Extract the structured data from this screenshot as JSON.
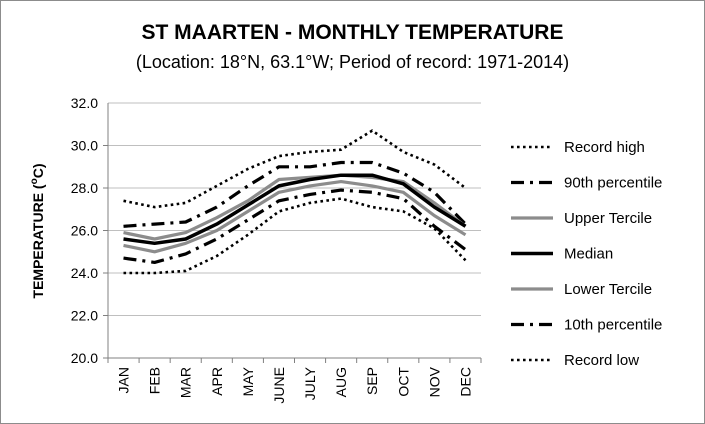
{
  "chart_data": {
    "type": "line",
    "title": "ST MAARTEN - MONTHLY TEMPERATURE",
    "subtitle": "(Location: 18°N, 63.1°W; Period of record: 1971-2014)",
    "ylabel_main": "TEMPERATURE (",
    "ylabel_sup": "o",
    "ylabel_end": "C)",
    "xlabel": "",
    "categories": [
      "JAN",
      "FEB",
      "MAR",
      "APR",
      "MAY",
      "JUNE",
      "JULY",
      "AUG",
      "SEP",
      "OCT",
      "NOV",
      "DEC"
    ],
    "ylim": [
      20.0,
      32.0
    ],
    "yticks": [
      "20.0",
      "22.0",
      "24.0",
      "26.0",
      "28.0",
      "30.0",
      "32.0"
    ],
    "grid": true,
    "legend_position": "right",
    "series": [
      {
        "name": "Record high",
        "color": "#000000",
        "style": "dotted",
        "values": [
          27.4,
          27.1,
          27.3,
          28.1,
          28.9,
          29.5,
          29.7,
          29.8,
          30.7,
          29.7,
          29.1,
          28.0
        ]
      },
      {
        "name": "90th percentile",
        "color": "#000000",
        "style": "dashdot",
        "values": [
          26.2,
          26.3,
          26.4,
          27.1,
          28.1,
          29.0,
          29.0,
          29.2,
          29.2,
          28.7,
          27.8,
          26.3
        ]
      },
      {
        "name": "Upper Tercile",
        "color": "#8c8c8c",
        "style": "solid",
        "values": [
          25.9,
          25.6,
          25.9,
          26.6,
          27.4,
          28.4,
          28.5,
          28.6,
          28.5,
          28.3,
          27.3,
          26.2
        ]
      },
      {
        "name": "Median",
        "color": "#000000",
        "style": "solid-thick",
        "values": [
          25.6,
          25.4,
          25.6,
          26.3,
          27.2,
          28.1,
          28.4,
          28.6,
          28.6,
          28.2,
          27.1,
          26.2
        ]
      },
      {
        "name": "Lower Tercile",
        "color": "#8c8c8c",
        "style": "solid",
        "values": [
          25.3,
          25.0,
          25.4,
          26.0,
          26.9,
          27.8,
          28.1,
          28.3,
          28.1,
          27.8,
          26.7,
          25.8
        ]
      },
      {
        "name": "10th percentile",
        "color": "#000000",
        "style": "dashdot",
        "values": [
          24.7,
          24.5,
          24.9,
          25.6,
          26.5,
          27.4,
          27.7,
          27.9,
          27.8,
          27.5,
          26.2,
          25.1
        ]
      },
      {
        "name": "Record low",
        "color": "#000000",
        "style": "dotted",
        "values": [
          24.0,
          24.0,
          24.1,
          24.8,
          25.8,
          26.9,
          27.3,
          27.5,
          27.1,
          26.9,
          26.1,
          24.6
        ]
      }
    ]
  }
}
